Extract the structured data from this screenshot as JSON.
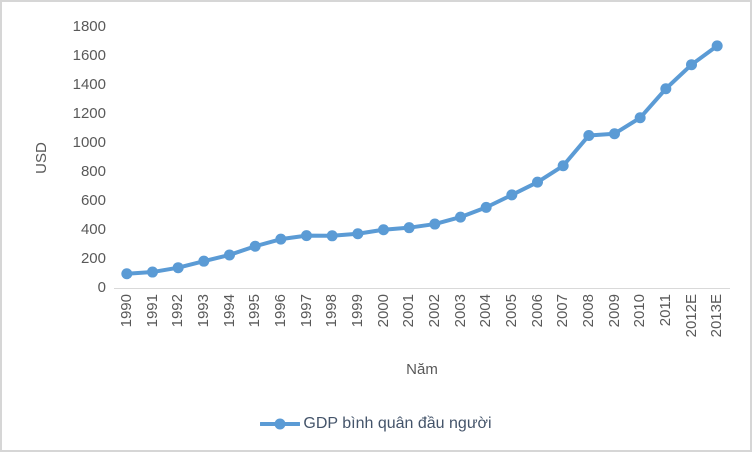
{
  "chart_data": {
    "type": "line",
    "title": "",
    "xlabel": "Năm",
    "ylabel": "USD",
    "categories": [
      "1990",
      "1991",
      "1992",
      "1993",
      "1994",
      "1995",
      "1996",
      "1997",
      "1998",
      "1999",
      "2000",
      "2001",
      "2002",
      "2003",
      "2004",
      "2005",
      "2006",
      "2007",
      "2008",
      "2009",
      "2010",
      "2011",
      "2012E",
      "2013E"
    ],
    "series": [
      {
        "name": "GDP bình quân đầu người",
        "values": [
          98,
          110,
          140,
          185,
          228,
          288,
          337,
          361,
          360,
          374,
          402,
          416,
          441,
          489,
          556,
          642,
          730,
          843,
          1052,
          1064,
          1174,
          1374,
          1540,
          1670
        ]
      }
    ],
    "ylim": [
      0,
      1800
    ],
    "ytick_step": 200,
    "grid": false,
    "legend_position": "bottom",
    "colors": {
      "series": "#5B9BD5",
      "axis_line": "#D9D9D9",
      "tick_labels": "#595959",
      "legend_text": "#44546A"
    }
  }
}
